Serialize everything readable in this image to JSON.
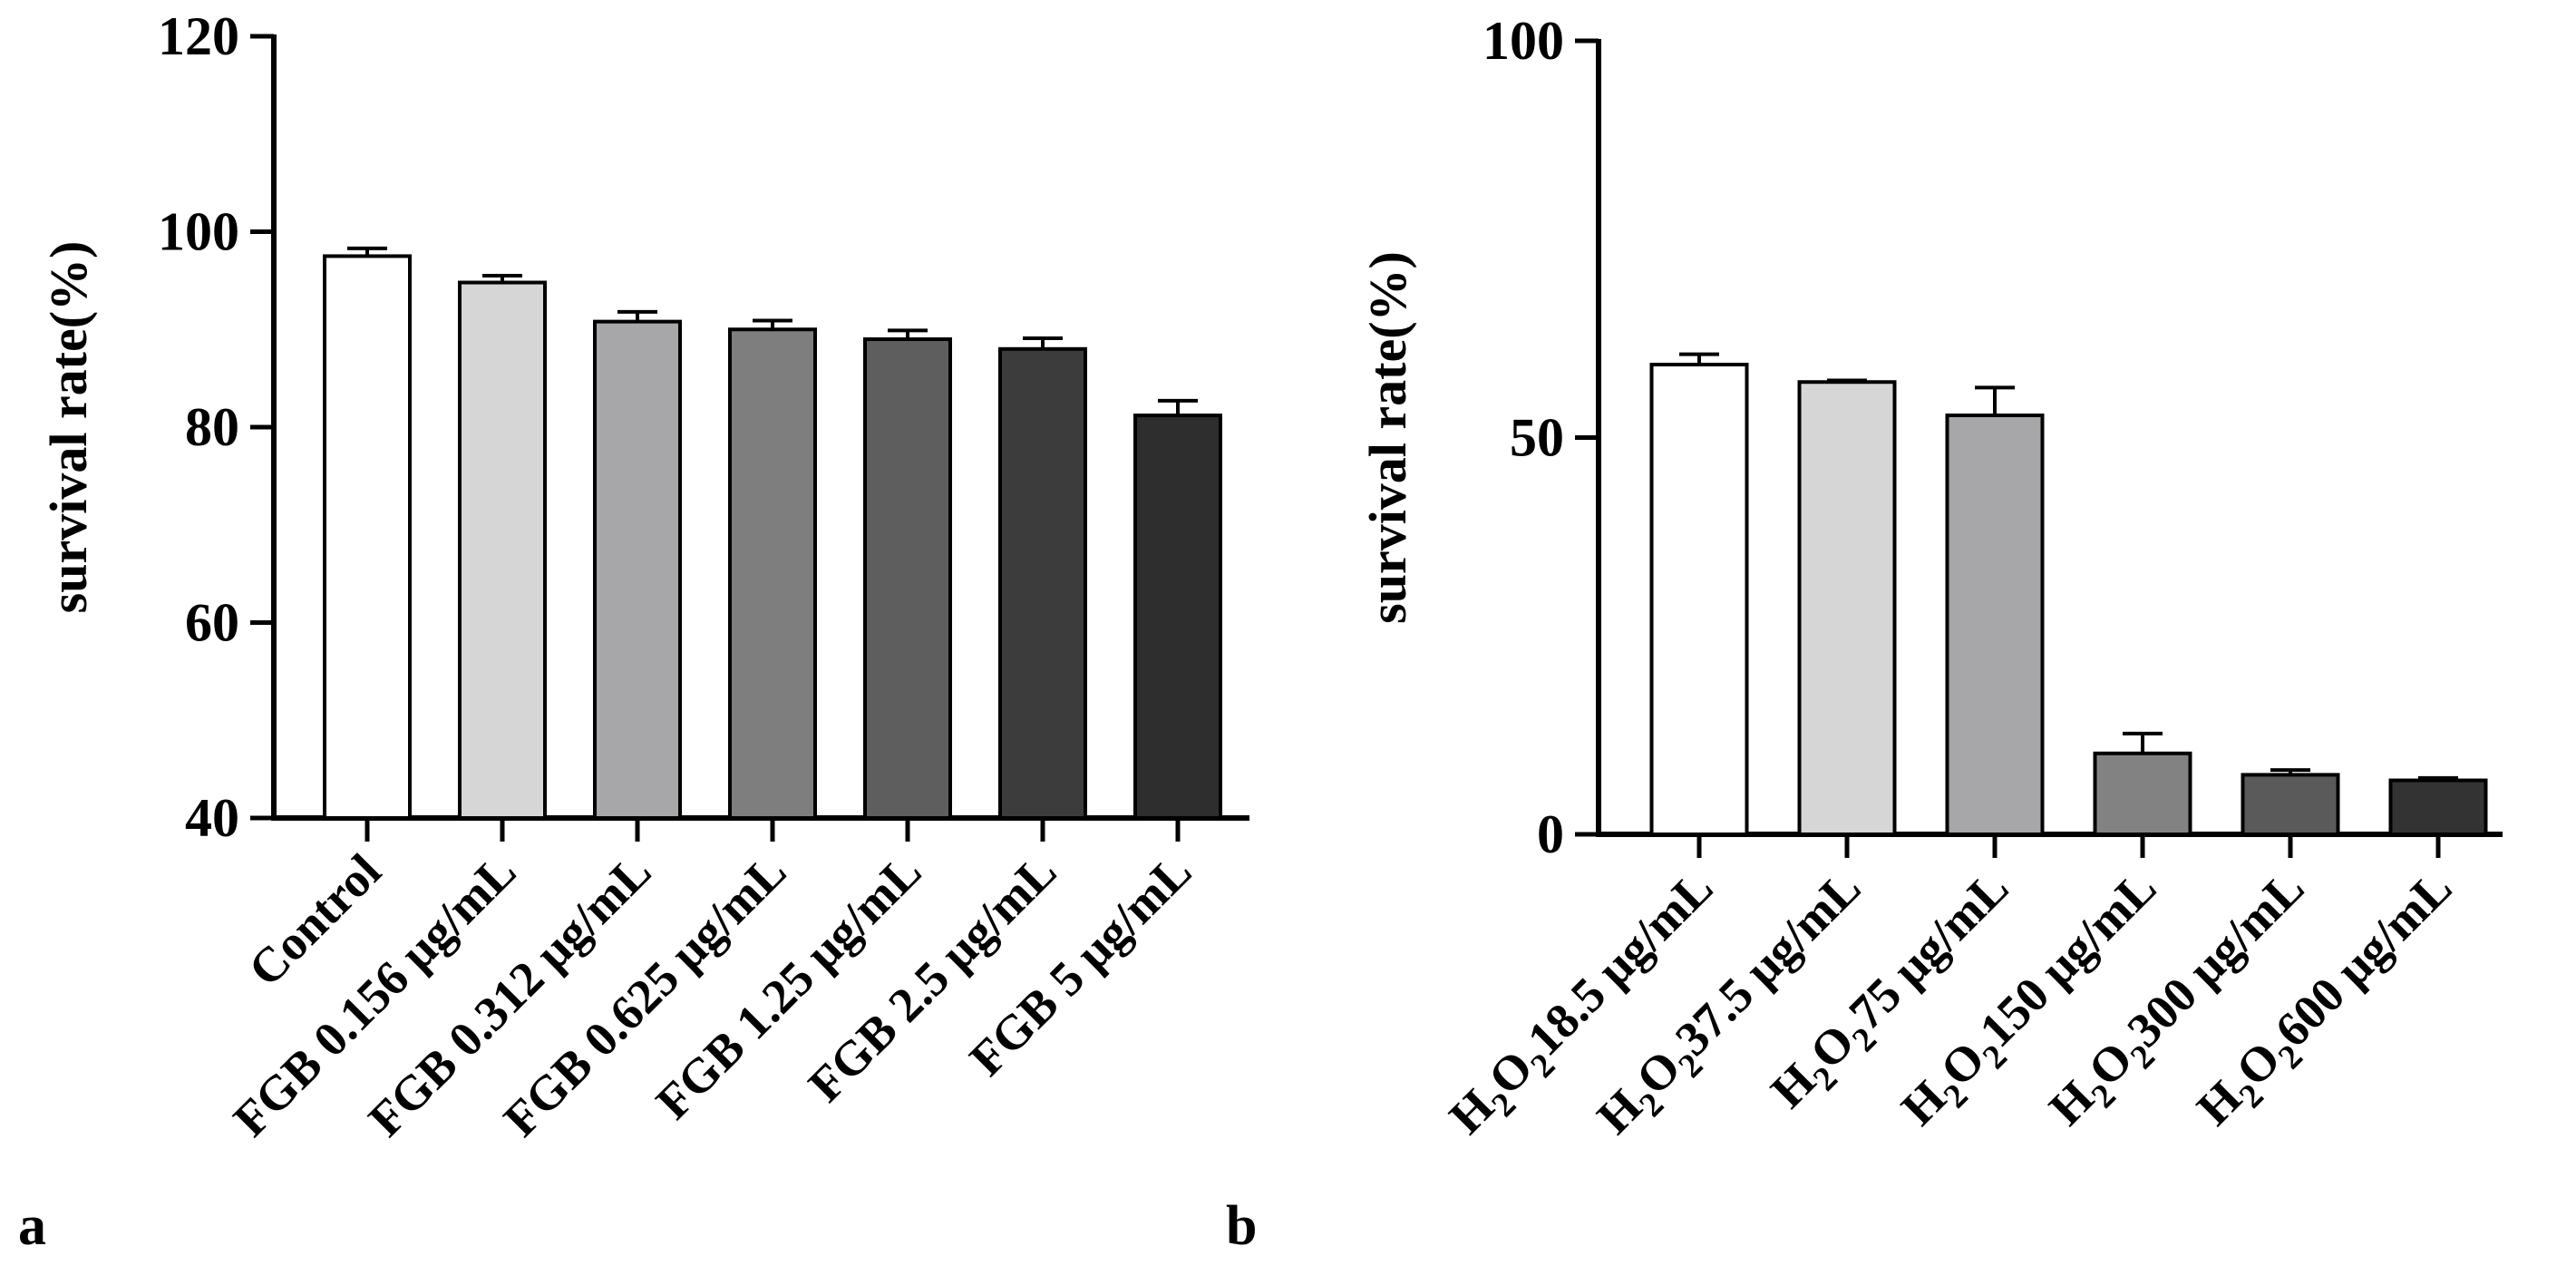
{
  "chart_data": [
    {
      "type": "bar",
      "panel_label": "a",
      "title": "",
      "xlabel": "",
      "ylabel": "survival rate(%)",
      "ylim": [
        40,
        120
      ],
      "yticks": [
        40,
        60,
        80,
        100,
        120
      ],
      "ytick_labels": [
        "40",
        "60",
        "80",
        "100",
        "120"
      ],
      "grid": false,
      "categories": [
        {
          "text": "Control"
        },
        {
          "text": "FGB 0.156 μg/mL"
        },
        {
          "text": "FGB 0.312 μg/mL"
        },
        {
          "text": "FGB 0.625 μg/mL"
        },
        {
          "text": "FGB 1.25 μg/mL"
        },
        {
          "text": "FGB 2.5 μg/mL"
        },
        {
          "text": "FGB 5 μg/mL"
        }
      ],
      "values": [
        97.5,
        94.8,
        90.8,
        90.0,
        89.0,
        88.0,
        81.2
      ],
      "errors": [
        0.8,
        0.7,
        1.0,
        0.9,
        0.9,
        1.1,
        1.5
      ],
      "bar_colors": [
        "#ffffff",
        "#d6d6d6",
        "#a7a7a9",
        "#7e7e7e",
        "#5e5e5e",
        "#3c3c3c",
        "#2e2e2e"
      ]
    },
    {
      "type": "bar",
      "panel_label": "b",
      "title": "",
      "xlabel": "",
      "ylabel": "survival rate(%)",
      "ylim": [
        0,
        100
      ],
      "yticks": [
        0,
        50,
        100
      ],
      "ytick_labels": [
        "0",
        "50",
        "100"
      ],
      "grid": false,
      "categories": [
        {
          "pre": "H",
          "sub1": "2",
          "mid": "O",
          "sub2": "2",
          "post": "18.5 μg/mL"
        },
        {
          "pre": "H",
          "sub1": "2",
          "mid": "O",
          "sub2": "2",
          "post": "37.5 μg/mL"
        },
        {
          "pre": "H",
          "sub1": "2",
          "mid": "O",
          "sub2": "2",
          "post": "75 μg/mL"
        },
        {
          "pre": "H",
          "sub1": "2",
          "mid": "O",
          "sub2": "2",
          "post": "150 μg/mL"
        },
        {
          "pre": "H",
          "sub1": "2",
          "mid": "O",
          "sub2": "2",
          "post": "300 μg/mL"
        },
        {
          "pre": "H",
          "sub1": "2",
          "mid": "O",
          "sub2": "2",
          "post": "600 μg/mL"
        }
      ],
      "values": [
        59.2,
        57.0,
        52.8,
        10.2,
        7.5,
        6.8
      ],
      "errors": [
        1.3,
        0.2,
        3.5,
        2.5,
        0.6,
        0.3
      ],
      "bar_colors": [
        "#ffffff",
        "#d6d6d6",
        "#a7a7a9",
        "#828282",
        "#5a5a5a",
        "#333333"
      ]
    }
  ]
}
